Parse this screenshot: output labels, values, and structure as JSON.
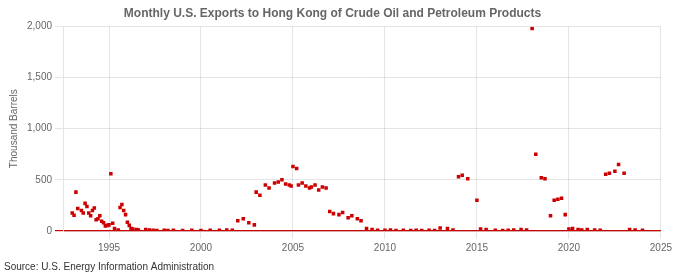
{
  "chart_data": {
    "type": "scatter",
    "title": "Monthly U.S. Exports to Hong Kong of Crude Oil and Petroleum Products",
    "ylabel": "Thousand Barrels",
    "annotation": "Source: U.S. Energy Information Administration",
    "color": "#cc0000",
    "marker": "square",
    "grid": true,
    "xlim": [
      1992.5,
      2025
    ],
    "ylim": [
      0,
      2000
    ],
    "xticks": [
      1995,
      2000,
      2005,
      2010,
      2015,
      2020,
      2025
    ],
    "yticks": [
      0,
      500,
      {
        "value": 1000,
        "label": "1,000"
      },
      {
        "value": 1500,
        "label": "1,500"
      },
      {
        "value": 2000,
        "label": "2,000"
      }
    ],
    "x": [
      1993.0,
      1993.1,
      1993.2,
      1993.3,
      1993.5,
      1993.6,
      1993.7,
      1993.8,
      1993.9,
      1994.0,
      1994.1,
      1994.2,
      1994.3,
      1994.4,
      1994.5,
      1994.6,
      1994.7,
      1994.8,
      1994.9,
      1995.0,
      1995.1,
      1995.2,
      1995.3,
      1995.5,
      1995.6,
      1995.7,
      1995.8,
      1995.9,
      1996.0,
      1996.1,
      1996.2,
      1996.3,
      1996.5,
      1996.6,
      1997.0,
      1997.2,
      1997.4,
      1997.6,
      1998.0,
      1998.2,
      1998.5,
      1999.0,
      1999.5,
      2000.0,
      2000.5,
      2001.0,
      2001.4,
      2001.7,
      2002.0,
      2002.3,
      2002.6,
      2002.9,
      2003.0,
      2003.2,
      2003.5,
      2003.7,
      2004.0,
      2004.2,
      2004.4,
      2004.6,
      2004.8,
      2004.9,
      2005.0,
      2005.2,
      2005.3,
      2005.5,
      2005.7,
      2005.9,
      2006.0,
      2006.2,
      2006.4,
      2006.6,
      2006.8,
      2007.0,
      2007.2,
      2007.5,
      2007.7,
      2008.0,
      2008.2,
      2008.5,
      2008.7,
      2009.0,
      2009.3,
      2009.6,
      2010.0,
      2010.3,
      2010.6,
      2011.0,
      2011.4,
      2011.7,
      2012.0,
      2012.4,
      2012.7,
      2013.0,
      2013.4,
      2013.7,
      2014.0,
      2014.2,
      2014.5,
      2015.0,
      2015.2,
      2015.5,
      2016.0,
      2016.4,
      2016.7,
      2017.0,
      2017.4,
      2017.7,
      2018.0,
      2018.2,
      2018.5,
      2018.7,
      2019.0,
      2019.2,
      2019.4,
      2019.6,
      2019.8,
      2020.0,
      2020.2,
      2020.5,
      2020.7,
      2021.0,
      2021.4,
      2021.7,
      2022.0,
      2022.2,
      2022.5,
      2022.7,
      2023.0,
      2023.3,
      2023.6,
      2024.0
    ],
    "values": [
      175,
      155,
      380,
      220,
      200,
      175,
      270,
      240,
      175,
      150,
      200,
      225,
      110,
      120,
      150,
      95,
      80,
      50,
      55,
      60,
      560,
      75,
      25,
      10,
      230,
      260,
      200,
      160,
      85,
      55,
      25,
      20,
      15,
      10,
      15,
      10,
      8,
      5,
      8,
      5,
      8,
      5,
      8,
      5,
      8,
      8,
      10,
      8,
      100,
      120,
      80,
      60,
      380,
      350,
      450,
      420,
      470,
      480,
      500,
      460,
      450,
      440,
      630,
      610,
      450,
      470,
      440,
      420,
      430,
      450,
      400,
      430,
      420,
      190,
      170,
      160,
      180,
      130,
      150,
      120,
      100,
      25,
      15,
      8,
      8,
      10,
      5,
      8,
      5,
      8,
      5,
      8,
      5,
      30,
      25,
      10,
      530,
      545,
      510,
      300,
      20,
      15,
      8,
      5,
      8,
      10,
      15,
      10,
      1980,
      750,
      520,
      510,
      150,
      300,
      310,
      320,
      160,
      20,
      25,
      15,
      10,
      15,
      10,
      8,
      555,
      565,
      585,
      650,
      565,
      15,
      10,
      8
    ]
  }
}
